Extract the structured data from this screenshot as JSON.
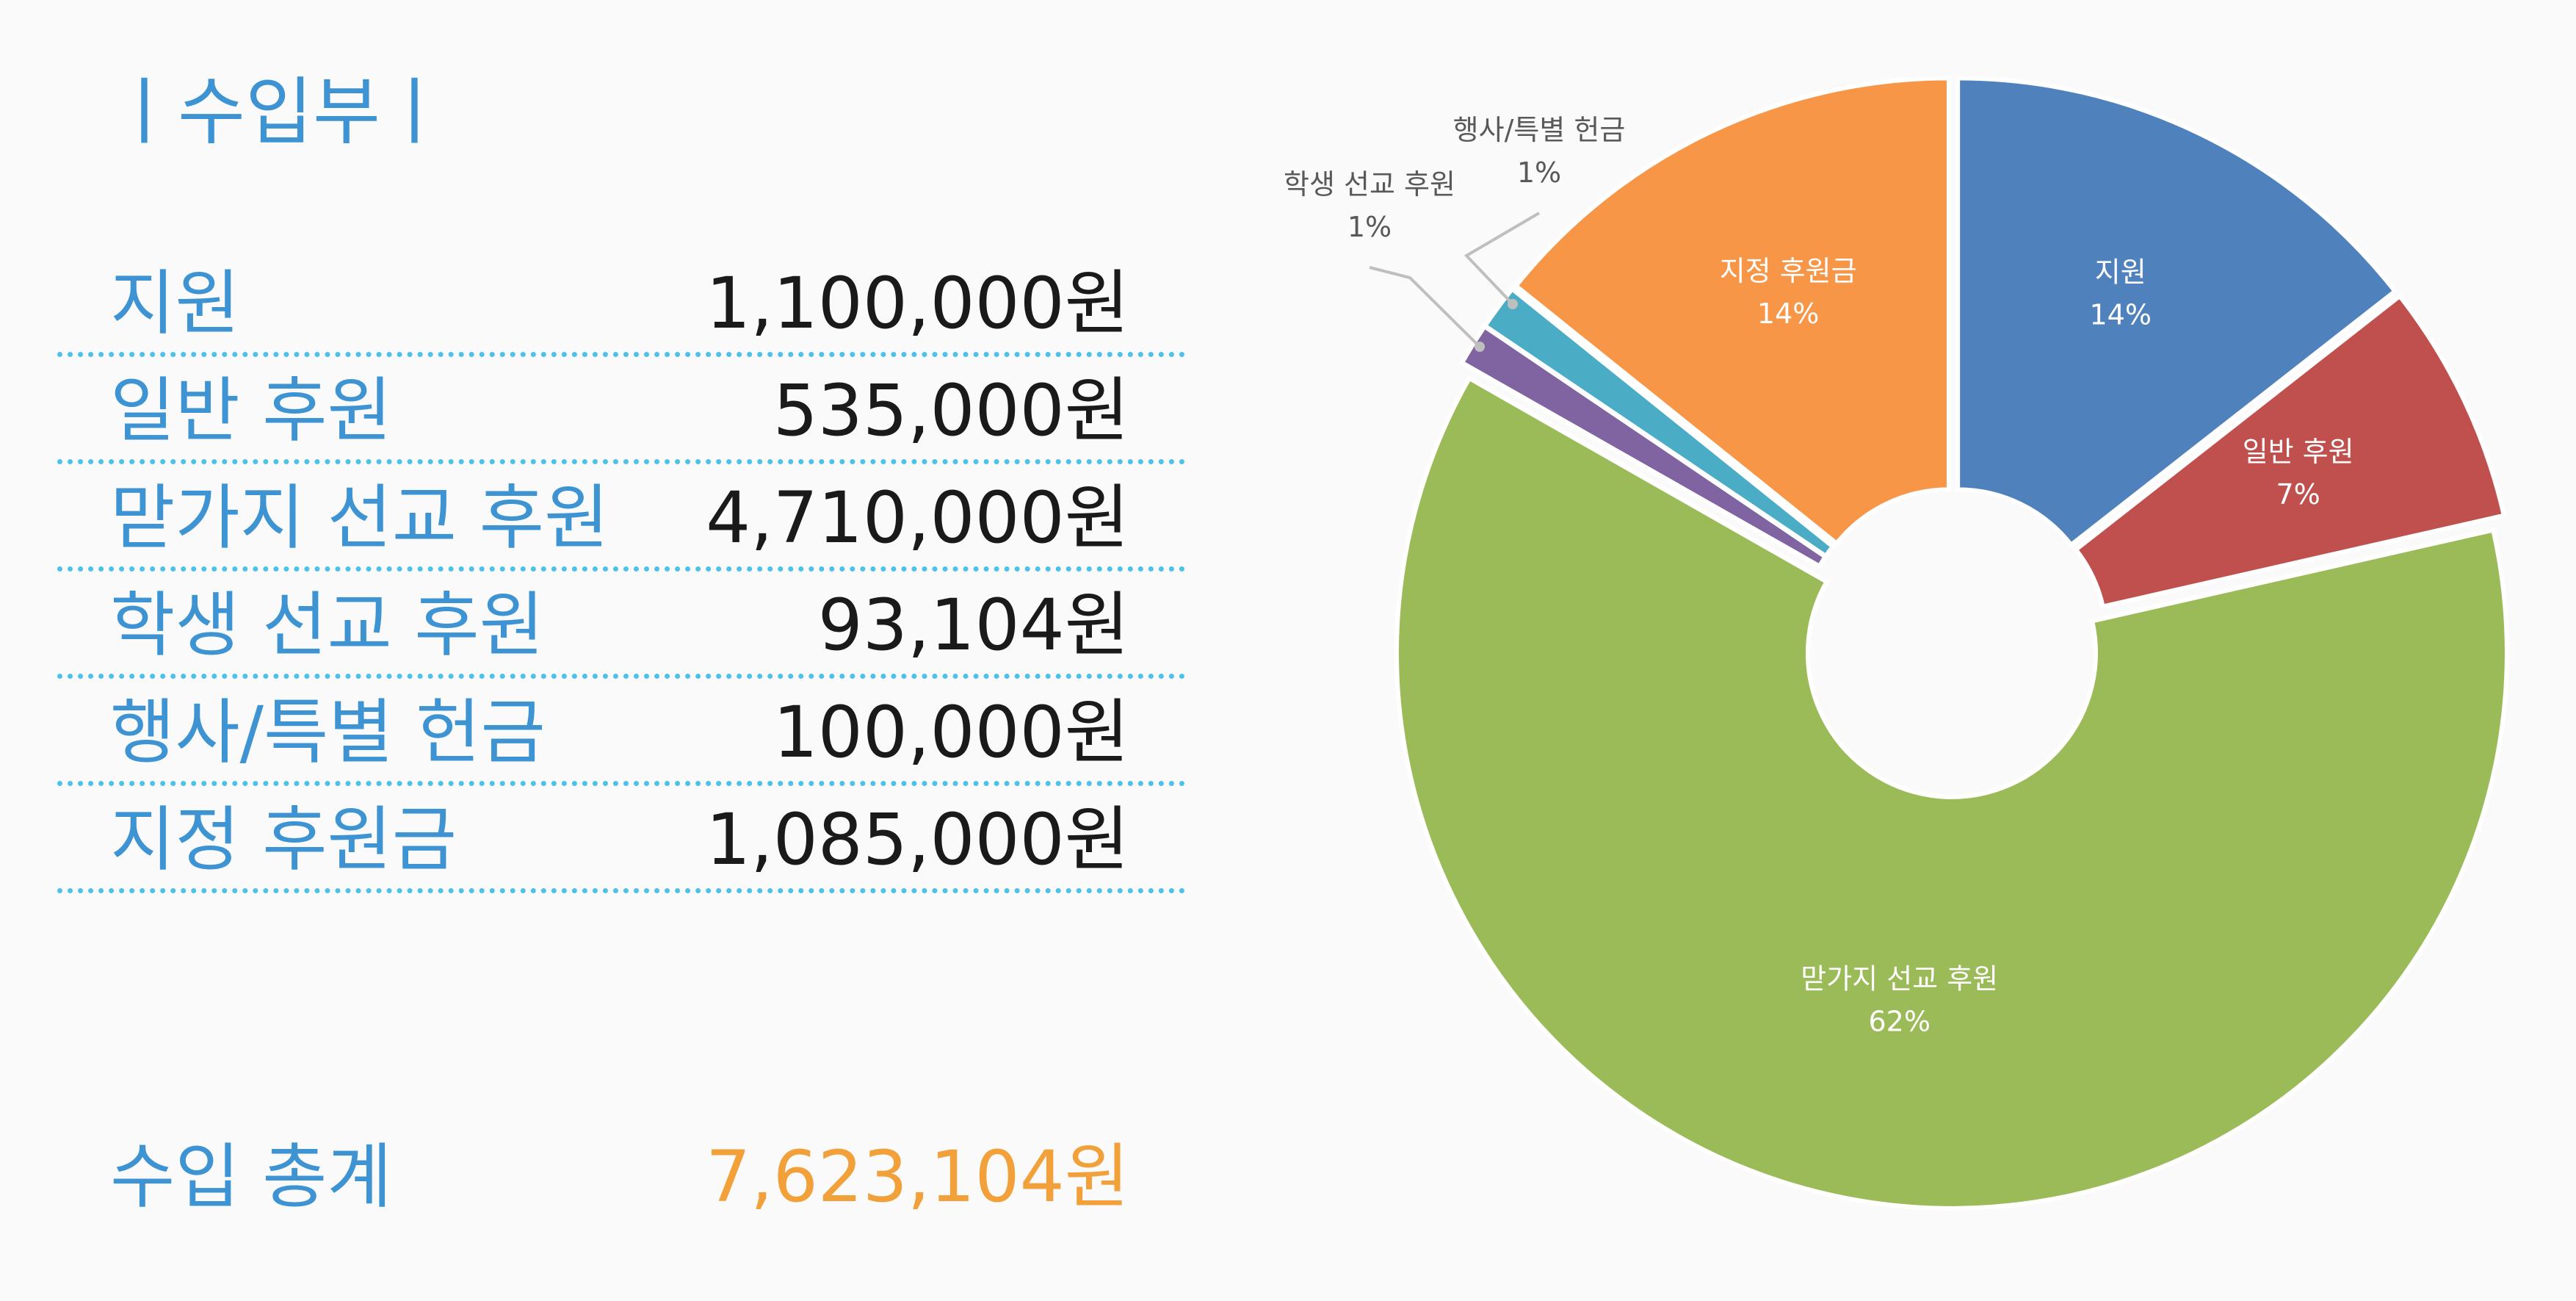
{
  "header": {
    "title": "ㅣ수입부ㅣ"
  },
  "income": {
    "rows": [
      {
        "label": "지원",
        "value": "1,100,000원"
      },
      {
        "label": "일반 후원",
        "value": "535,000원"
      },
      {
        "label": "맏가지 선교 후원",
        "value": "4,710,000원"
      },
      {
        "label": "학생 선교 후원",
        "value": "93,104원"
      },
      {
        "label": "행사/특별 헌금",
        "value": "100,000원"
      },
      {
        "label": "지정 후원금",
        "value": "1,085,000원"
      }
    ],
    "total": {
      "label": "수입 총계",
      "value": "7,623,104원"
    }
  },
  "colors": {
    "heading": "#3e94d2",
    "divider": "#4cc1ea",
    "total_value": "#f2a03a",
    "value_text": "#1a1a1a"
  },
  "chart_data": {
    "type": "pie",
    "donut": true,
    "start_angle_deg": 0,
    "direction": "clockwise",
    "categories": [
      "지원",
      "일반 후원",
      "맏가지 선교 후원",
      "학생 선교 후원",
      "행사/특별 헌금",
      "지정 후원금"
    ],
    "values": [
      1100000,
      535000,
      4710000,
      93104,
      100000,
      1085000
    ],
    "percent_labels": [
      "14%",
      "7%",
      "62%",
      "1%",
      "1%",
      "14%"
    ],
    "colors": [
      "#4f81bd",
      "#c0504d",
      "#9bbb59",
      "#8064a2",
      "#4bacc6",
      "#f79646"
    ],
    "label_color_inside": "#ffffff",
    "label_color_outside": "#595959"
  }
}
